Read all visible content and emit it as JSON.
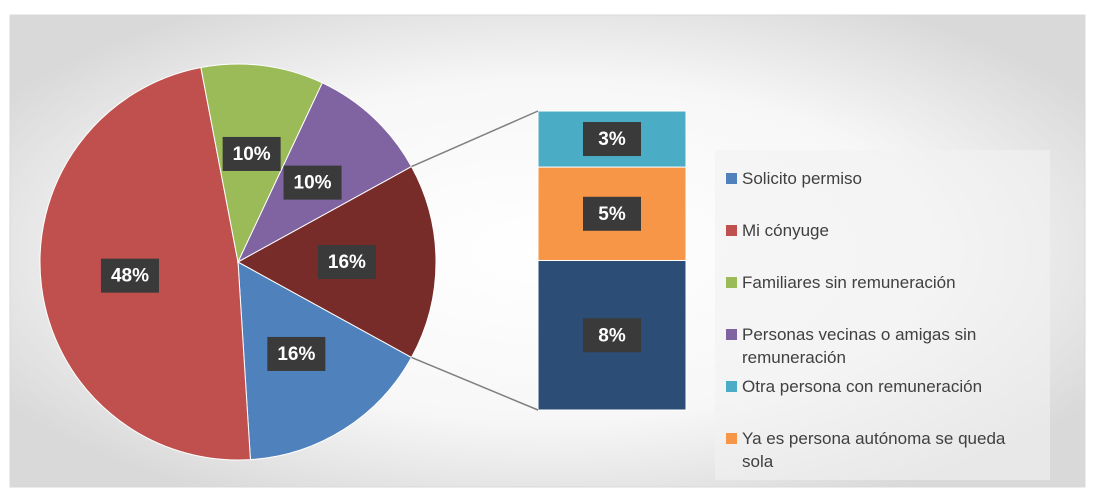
{
  "chart_data": {
    "type": "pie-of-bar",
    "pie": {
      "categories": [
        "Solicito permiso",
        "Mi cónyuge",
        "Familiares sin remuneración",
        "Personas vecinas o amigas sin remuneración"
      ],
      "values": [
        16,
        48,
        10,
        10
      ],
      "value_labels": [
        "16%",
        "48%",
        "10%",
        "10%"
      ],
      "colors": [
        "#4f81bd",
        "#c0504d",
        "#9bbb59",
        "#8064a2"
      ]
    },
    "other": {
      "value": 16,
      "value_label": "16%",
      "color": "#772c2a"
    },
    "bar": {
      "categories": [
        "Otra persona con remuneración",
        "Ya es persona autónoma se queda sola",
        null
      ],
      "values": [
        3,
        5,
        8
      ],
      "value_labels": [
        "3%",
        "5%",
        "8%"
      ],
      "colors": [
        "#4bacc6",
        "#f79646",
        "#2c4d75"
      ]
    }
  }
}
